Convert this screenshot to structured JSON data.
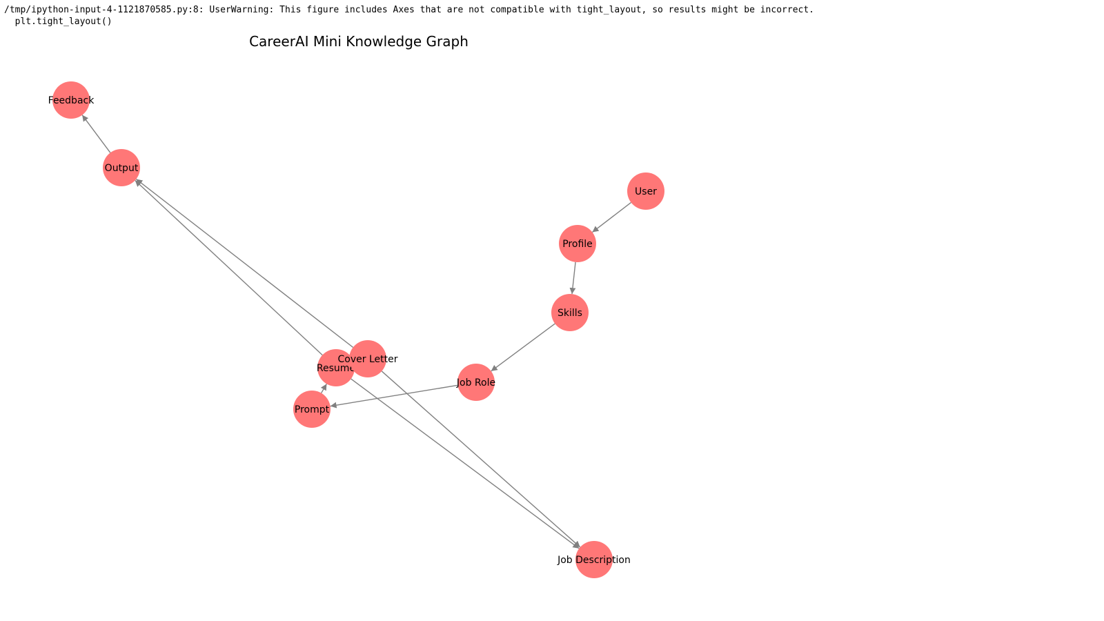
{
  "console": {
    "warning_line": "/tmp/ipython-input-4-1121870585.py:8: UserWarning: This figure includes Axes that are not compatible with tight_layout, so results might be incorrect.",
    "code_line": "  plt.tight_layout()"
  },
  "graph": {
    "title": "CareerAI Mini Knowledge Graph",
    "node_color": "#ff7777",
    "edge_color": "#808080",
    "nodes": [
      {
        "id": "user",
        "label": "User"
      },
      {
        "id": "profile",
        "label": "Profile"
      },
      {
        "id": "skills",
        "label": "Skills"
      },
      {
        "id": "job-role",
        "label": "Job Role"
      },
      {
        "id": "prompt",
        "label": "Prompt"
      },
      {
        "id": "resume",
        "label": "Resume"
      },
      {
        "id": "cover-letter",
        "label": "Cover Letter"
      },
      {
        "id": "job-description",
        "label": "Job Description"
      },
      {
        "id": "output",
        "label": "Output"
      },
      {
        "id": "feedback",
        "label": "Feedback"
      }
    ],
    "edges": [
      {
        "from": "user",
        "to": "profile"
      },
      {
        "from": "profile",
        "to": "skills"
      },
      {
        "from": "skills",
        "to": "job-role"
      },
      {
        "from": "job-role",
        "to": "prompt"
      },
      {
        "from": "prompt",
        "to": "resume"
      },
      {
        "from": "resume",
        "to": "output"
      },
      {
        "from": "resume",
        "to": "job-description"
      },
      {
        "from": "cover-letter",
        "to": "output"
      },
      {
        "from": "cover-letter",
        "to": "job-description"
      },
      {
        "from": "output",
        "to": "feedback"
      }
    ]
  }
}
